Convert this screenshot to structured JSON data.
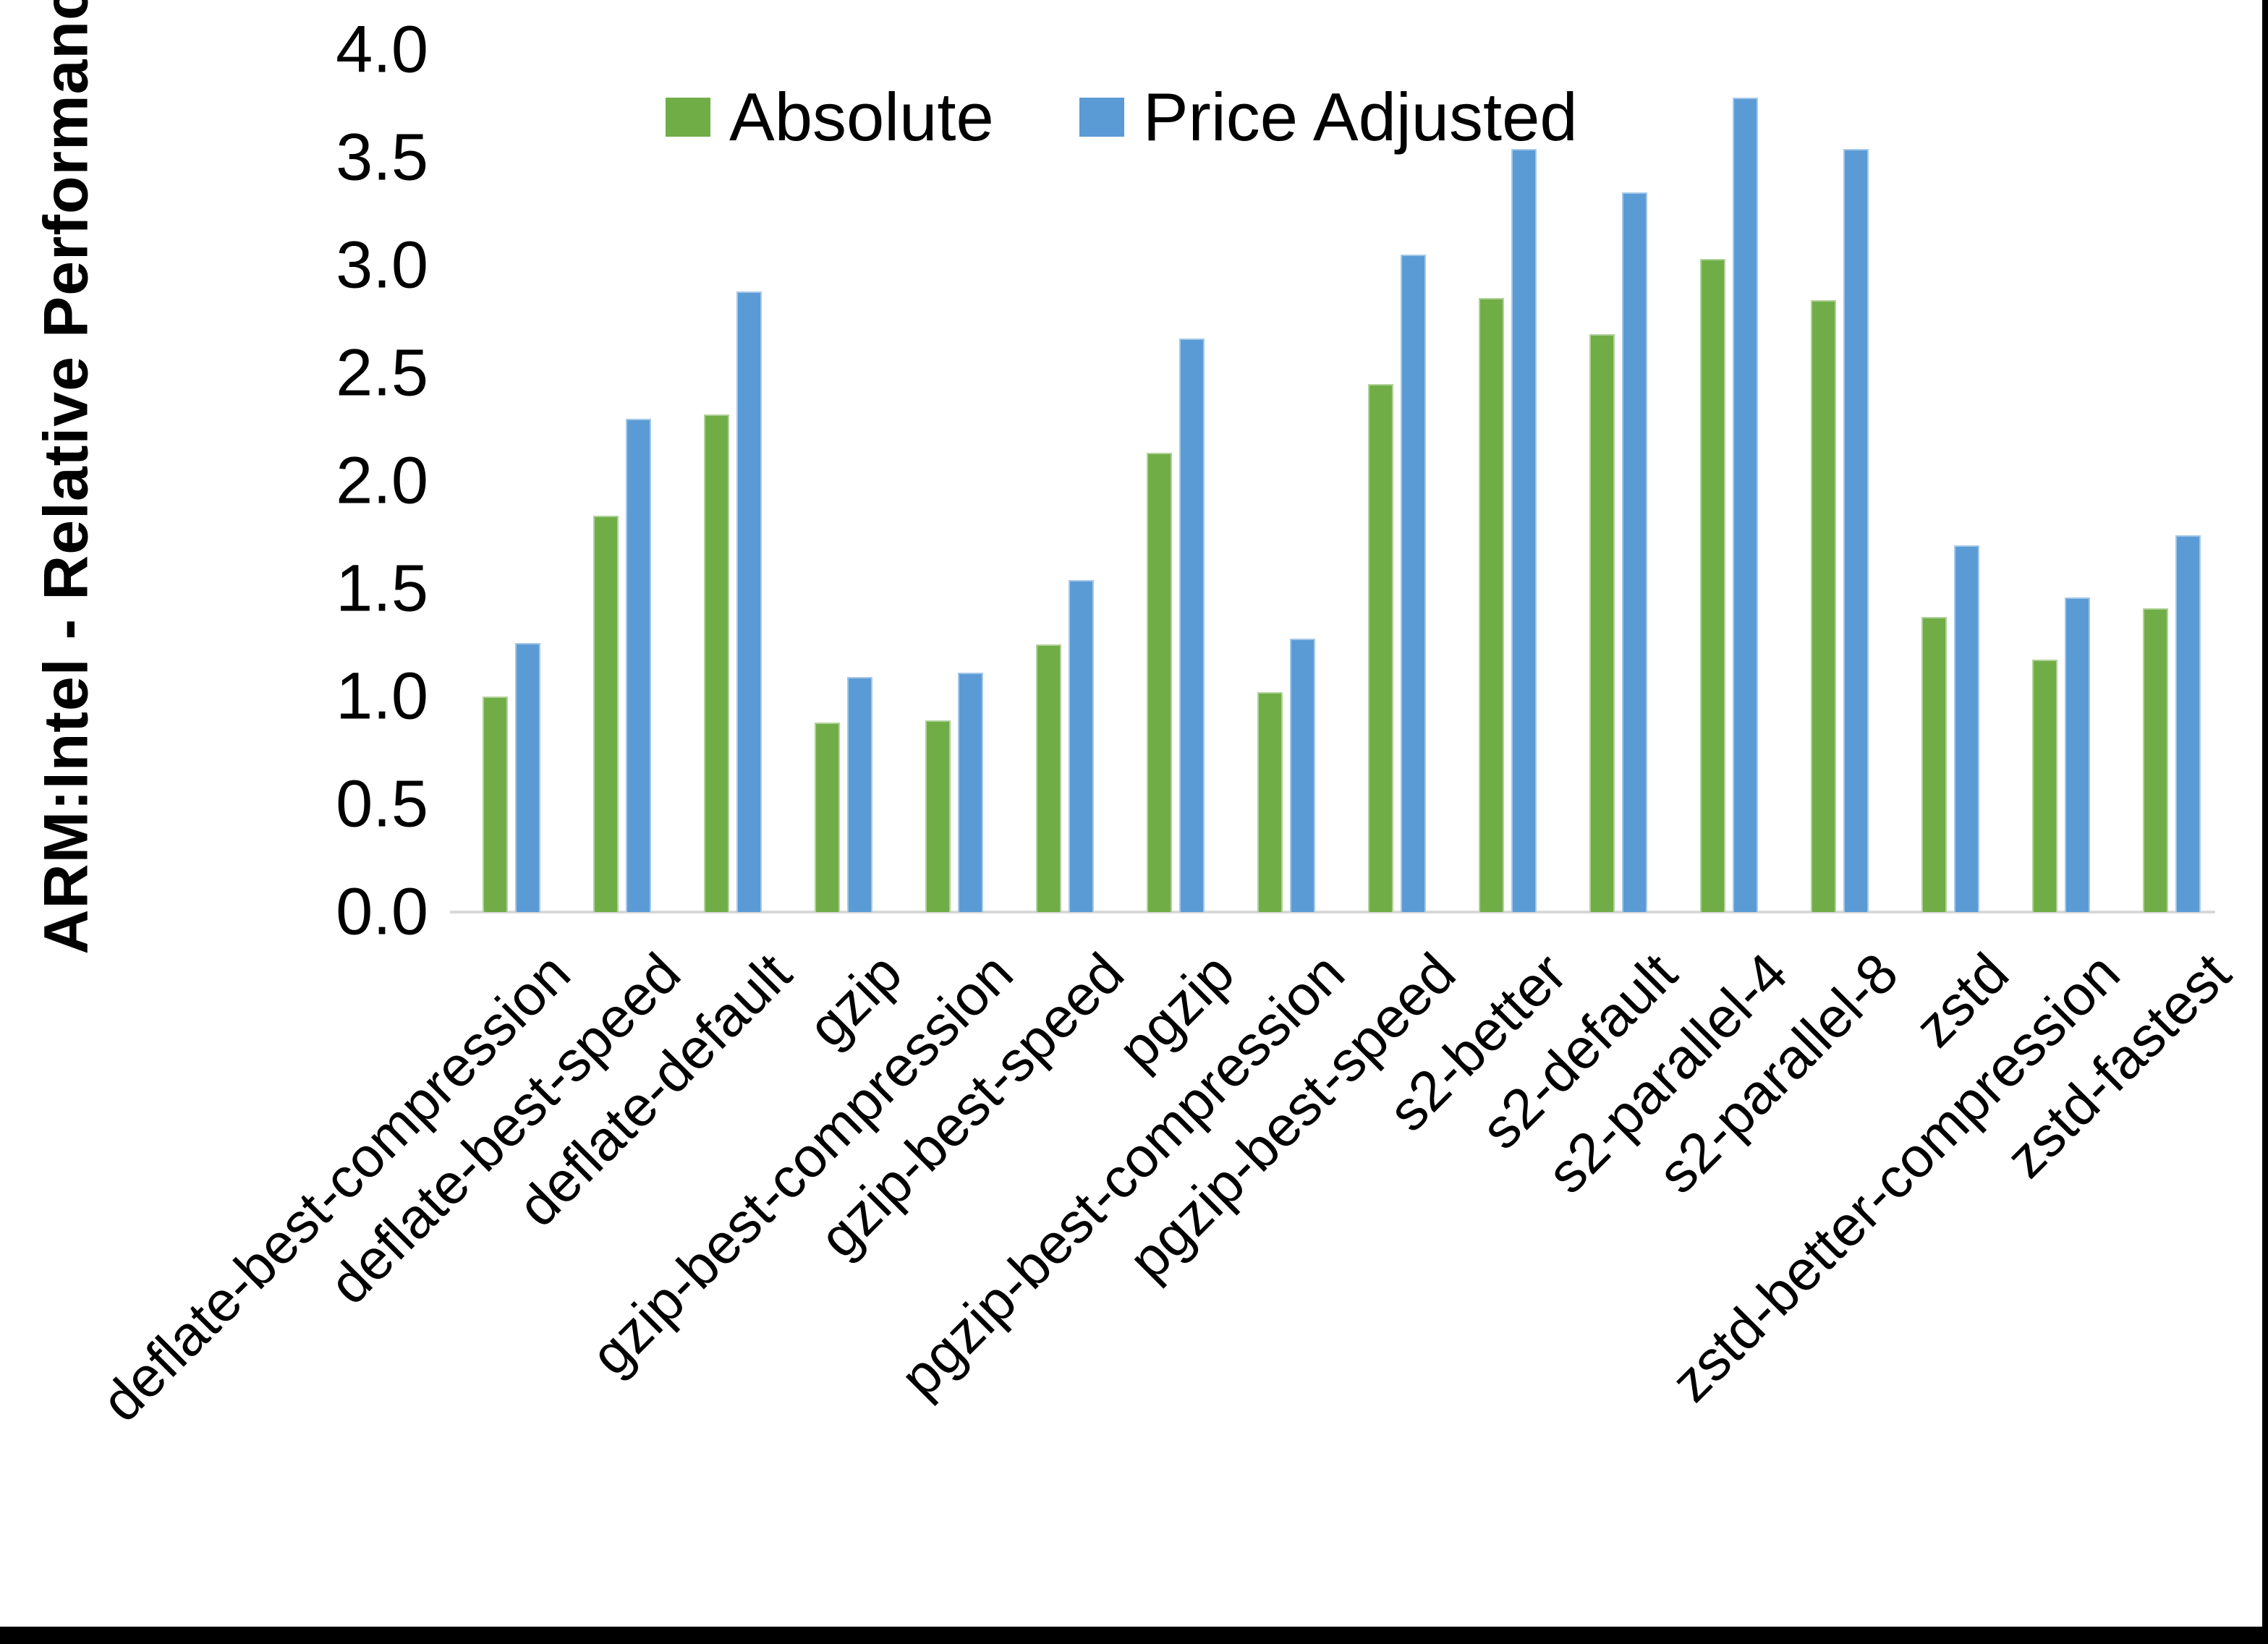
{
  "page": {
    "background": "#ffffff",
    "frame_color": "#000000",
    "axis_line_color": "#d9d9d9",
    "text_color": "#000000"
  },
  "chart_data": {
    "type": "bar",
    "title": "",
    "xlabel": "",
    "ylabel": "ARM:Intel - Relative Performance",
    "ylim": [
      0.0,
      4.0
    ],
    "ytick_step": 0.5,
    "yticks": [
      "0.0",
      "0.5",
      "1.0",
      "1.5",
      "2.0",
      "2.5",
      "3.0",
      "3.5",
      "4.0"
    ],
    "grid": false,
    "legend_position": "top-center",
    "categories": [
      "deflate-best-compression",
      "deflate-best-speed",
      "deflate-default",
      "gzip",
      "gzip-best-compression",
      "gzip-best-speed",
      "pgzip",
      "pgzip-best-compression",
      "pgzip-best-speed",
      "s2-better",
      "s2-default",
      "s2-parallel-4",
      "s2-parallel-8",
      "zstd",
      "zstd-better-compression",
      "zstd-fastest"
    ],
    "series": [
      {
        "name": "Absolute",
        "color": "#70AD47",
        "values": [
          1.0,
          1.84,
          2.31,
          0.88,
          0.89,
          1.24,
          2.13,
          1.02,
          2.45,
          2.85,
          2.68,
          3.03,
          2.84,
          1.37,
          1.17,
          1.41
        ]
      },
      {
        "name": "Price Adjusted",
        "color": "#5B9BD5",
        "values": [
          1.25,
          2.29,
          2.88,
          1.09,
          1.11,
          1.54,
          2.66,
          1.27,
          3.05,
          3.54,
          3.34,
          3.78,
          3.54,
          1.7,
          1.46,
          1.75
        ]
      }
    ]
  }
}
